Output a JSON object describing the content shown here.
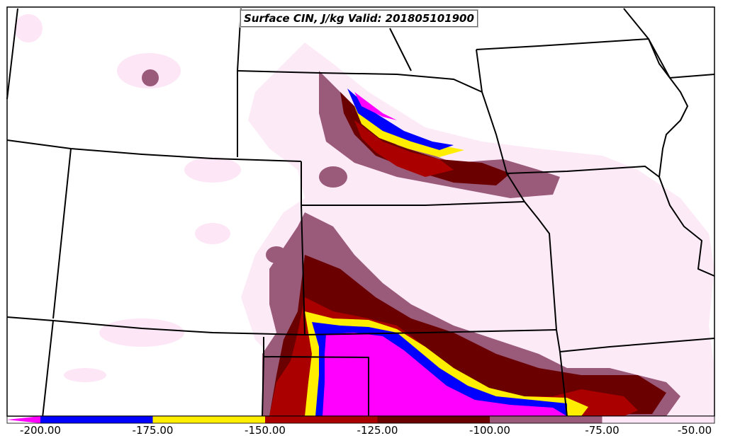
{
  "map": {
    "title": "Surface CIN, J/kg Valid: 201805101900"
  },
  "legend": {
    "labels": [
      "-200.00",
      "-175.00",
      "-150.00",
      "-125.00",
      "-100.00",
      "-75.00",
      "-50.00"
    ],
    "bins": [
      {
        "from": -200,
        "to": -175,
        "color": "#0000ff"
      },
      {
        "from": -175,
        "to": -150,
        "color": "#ffee00"
      },
      {
        "from": -150,
        "to": -125,
        "color": "#aa0000"
      },
      {
        "from": -125,
        "to": -100,
        "color": "#6b0000"
      },
      {
        "from": -100,
        "to": -75,
        "color": "#9a5a7a"
      },
      {
        "from": -75,
        "to": -50,
        "color": "#fde6f6"
      }
    ],
    "below_min_color": "#ff00ff"
  },
  "colors": {
    "magenta": "#ff00ff",
    "blue": "#0000ff",
    "yellow": "#ffee00",
    "red": "#aa0000",
    "darkred": "#6b0000",
    "mauve": "#9a5a7a",
    "pink": "#fde6f6",
    "border": "#000000"
  }
}
